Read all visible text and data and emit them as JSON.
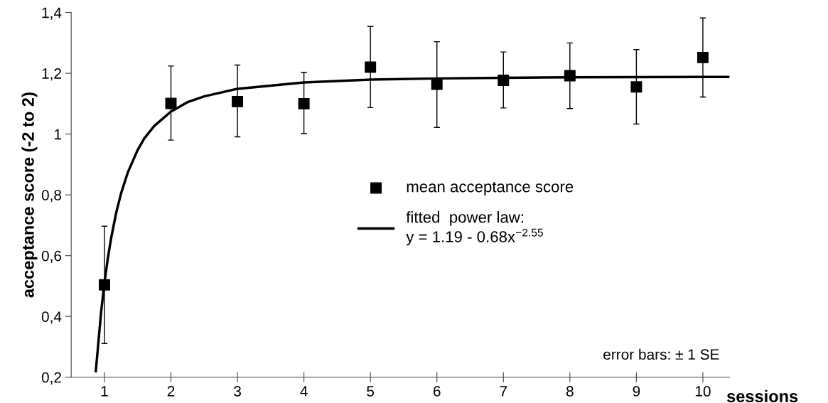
{
  "chart_data": {
    "type": "scatter",
    "xlabel": "sessions",
    "ylabel": "acceptance score (-2 to 2)",
    "xlim": [
      0.5,
      10.4
    ],
    "xticks": [
      1,
      2,
      3,
      4,
      5,
      6,
      7,
      8,
      9,
      10
    ],
    "ylim": [
      0.2,
      1.4
    ],
    "yticks": [
      {
        "value": 0.2,
        "label": "0,2"
      },
      {
        "value": 0.4,
        "label": "0,4"
      },
      {
        "value": 0.6,
        "label": "0,6"
      },
      {
        "value": 0.8,
        "label": "0,8"
      },
      1,
      {
        "value": 1.2,
        "label": "1,2"
      },
      {
        "value": 1.4,
        "label": "1,4"
      }
    ],
    "series": [
      {
        "name": "mean acceptance score",
        "color": "#000000",
        "marker": "square",
        "x": [
          1,
          2,
          3,
          4,
          5,
          6,
          7,
          8,
          9,
          10
        ],
        "values": [
          0.504,
          1.101,
          1.107,
          1.1,
          1.22,
          1.164,
          1.177,
          1.192,
          1.155,
          1.252
        ],
        "errors": [
          [
            0.311,
            0.697
          ],
          [
            0.98,
            1.224
          ],
          [
            0.991,
            1.227
          ],
          [
            1.002,
            1.203
          ],
          [
            1.087,
            1.354
          ],
          [
            1.022,
            1.304
          ],
          [
            1.086,
            1.27
          ],
          [
            1.084,
            1.3
          ],
          [
            1.033,
            1.278
          ],
          [
            1.122,
            1.382
          ]
        ]
      },
      {
        "name": "fitted  power law:\ny = 1.19 - 0.68x$^{−2.55}$",
        "type": "line",
        "color": "#000000",
        "line_style": "solid",
        "x": [
          0.87,
          0.95,
          1,
          1.05,
          1.1,
          1.175,
          1.25,
          1.35,
          1.5,
          1.6,
          1.75,
          2,
          2.25,
          2.5,
          3,
          4,
          5,
          6,
          7,
          8,
          10,
          10.4
        ],
        "values": [
          0.22,
          0.415,
          0.51,
          0.59,
          0.657,
          0.74,
          0.805,
          0.873,
          0.948,
          0.986,
          1.027,
          1.074,
          1.105,
          1.124,
          1.149,
          1.17,
          1.179,
          1.183,
          1.185,
          1.187,
          1.188,
          1.188
        ]
      }
    ],
    "legend": "center",
    "grid": false,
    "annotations": [
      "error bars: ± 1 SE"
    ]
  }
}
